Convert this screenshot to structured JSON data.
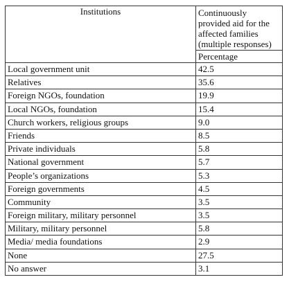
{
  "table": {
    "header": [
      "Institutions",
      "Continuously provided aid for the affected families (multiple responses)"
    ],
    "subheader": "Percentage",
    "rows": [
      [
        "Local government unit",
        "42.5"
      ],
      [
        "Relatives",
        "35.6"
      ],
      [
        "Foreign NGOs, foundation",
        "19.9"
      ],
      [
        "Local NGOs, foundation",
        "15.4"
      ],
      [
        "Church workers, religious groups",
        "9.0"
      ],
      [
        "Friends",
        "8.5"
      ],
      [
        "Private individuals",
        "5.8"
      ],
      [
        "National government",
        "5.7"
      ],
      [
        "People’s organizations",
        "5.3"
      ],
      [
        "Foreign governments",
        "4.5"
      ],
      [
        "Community",
        "3.5"
      ],
      [
        "Foreign military, military personnel",
        "3.5"
      ],
      [
        "Military, military personnel",
        "5.8"
      ],
      [
        "Media/ media foundations",
        "2.9"
      ],
      [
        "None",
        "27.5"
      ],
      [
        "No answer",
        "3.1"
      ]
    ]
  }
}
